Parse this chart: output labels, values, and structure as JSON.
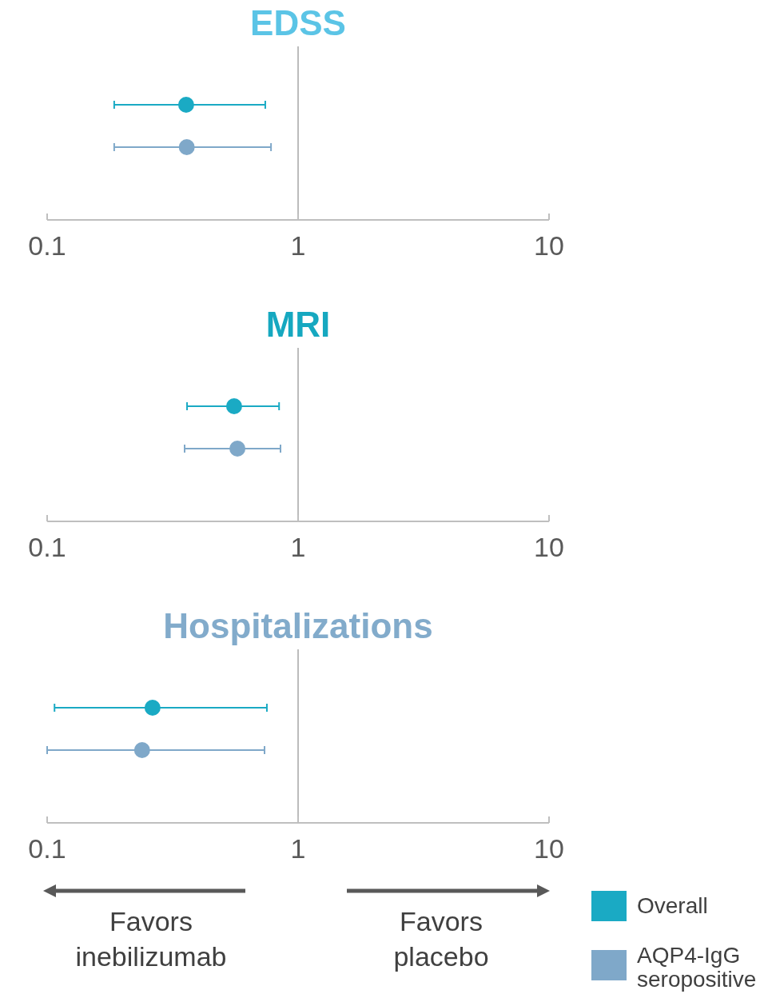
{
  "chart_data": [
    {
      "type": "scatter",
      "title": "EDSS",
      "orientation": "horizontal",
      "categories": [
        null,
        null
      ],
      "log": "x",
      "xlim": [
        0.1,
        10
      ],
      "xticks": [
        0.1,
        1,
        10
      ],
      "tick_labels": "x",
      "grid": false,
      "marker": "circle",
      "ref_lines": [
        {
          "axis": "x",
          "value": 1,
          "color": "#a6a6a6"
        }
      ],
      "series": [
        {
          "color": "#1aaac4",
          "values": [
            0.358,
            null
          ],
          "errors": [
            [
              0.185,
              0.74
            ],
            null
          ]
        },
        {
          "color": "#7fa8c9",
          "values": [
            null,
            0.36
          ],
          "errors": [
            null,
            [
              0.185,
              0.78
            ]
          ]
        }
      ]
    },
    {
      "type": "scatter",
      "title": "MRI",
      "orientation": "horizontal",
      "categories": [
        null,
        null
      ],
      "log": "x",
      "xlim": [
        0.1,
        10
      ],
      "xticks": [
        0.1,
        1,
        10
      ],
      "tick_labels": "x",
      "grid": false,
      "marker": "circle",
      "ref_lines": [
        {
          "axis": "x",
          "value": 1,
          "color": "#a6a6a6"
        }
      ],
      "series": [
        {
          "color": "#1aaac4",
          "values": [
            0.556,
            null
          ],
          "errors": [
            [
              0.361,
              0.84
            ],
            null
          ]
        },
        {
          "color": "#7fa8c9",
          "values": [
            null,
            0.573
          ],
          "errors": [
            null,
            [
              0.353,
              0.851
            ]
          ]
        }
      ]
    },
    {
      "type": "scatter",
      "title": "Hospitalizations",
      "orientation": "horizontal",
      "categories": [
        null,
        null
      ],
      "log": "x",
      "xlim": [
        0.1,
        10
      ],
      "xticks": [
        0.1,
        1,
        10
      ],
      "tick_labels": "x",
      "grid": false,
      "marker": "circle",
      "legend": "bottom right",
      "ref_lines": [
        {
          "axis": "x",
          "value": 1,
          "color": "#a6a6a6"
        }
      ],
      "annotations": [
        "Favors inebilizumab",
        "Favors placebo"
      ],
      "series": [
        {
          "name": "Overall",
          "color": "#1aaac4",
          "values": [
            0.263,
            null
          ],
          "errors": [
            [
              0.107,
              0.751
            ],
            null
          ]
        },
        {
          "name": "AQP4-IgG seropositive",
          "color": "#7fa8c9",
          "values": [
            null,
            0.239
          ],
          "errors": [
            null,
            [
              0.1,
              0.735
            ]
          ]
        }
      ]
    }
  ]
}
